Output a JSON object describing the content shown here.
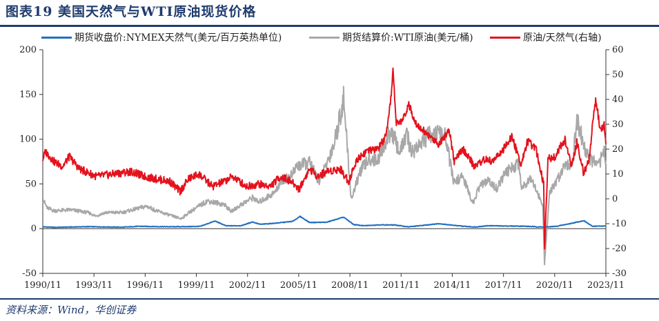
{
  "header": {
    "title": "图表19 美国天然气与WTI原油现货价格"
  },
  "footer": {
    "source": "资料来源：Wind，华创证券"
  },
  "colors": {
    "gas": "#1f6fc0",
    "wti": "#a8a8a8",
    "ratio": "#e3121d",
    "accent": "#1f3b6e"
  },
  "chart_data": {
    "type": "line",
    "title": "图表19 美国天然气与WTI原油现货价格",
    "legend_position": "top",
    "grid": false,
    "x_ticks": [
      "1990/11",
      "1993/11",
      "1996/11",
      "1999/11",
      "2002/11",
      "2005/11",
      "2008/11",
      "2011/11",
      "2014/11",
      "2017/11",
      "2020/11",
      "2023/11"
    ],
    "y_left": {
      "range": [
        -50,
        200
      ],
      "ticks": [
        -50,
        0,
        50,
        100,
        150,
        200
      ]
    },
    "y_right": {
      "range": [
        -30,
        60
      ],
      "ticks": [
        -30,
        -20,
        -10,
        0,
        10,
        20,
        30,
        40,
        50,
        60
      ]
    },
    "series": [
      {
        "name": "期货收盘价:NYMEX天然气(美元/百万英热单位)",
        "axis": "left",
        "points": [
          [
            1990.84,
            2.1
          ],
          [
            1991.5,
            1.4
          ],
          [
            1992.5,
            1.8
          ],
          [
            1993.5,
            2.2
          ],
          [
            1994.5,
            1.9
          ],
          [
            1995.5,
            1.6
          ],
          [
            1996.5,
            2.6
          ],
          [
            1997.5,
            2.3
          ],
          [
            1998.5,
            2.1
          ],
          [
            1999.5,
            2.3
          ],
          [
            2000.1,
            2.6
          ],
          [
            2000.95,
            8.5
          ],
          [
            2001.6,
            3.1
          ],
          [
            2002.5,
            3.3
          ],
          [
            2003.15,
            7.5
          ],
          [
            2003.6,
            4.8
          ],
          [
            2004.5,
            6.1
          ],
          [
            2005.5,
            8.1
          ],
          [
            2005.95,
            13.6
          ],
          [
            2006.5,
            6.9
          ],
          [
            2007.5,
            7.1
          ],
          [
            2008.5,
            12.8
          ],
          [
            2009.1,
            4.5
          ],
          [
            2009.7,
            3.2
          ],
          [
            2010.5,
            4.2
          ],
          [
            2011.5,
            4.1
          ],
          [
            2012.3,
            2.0
          ],
          [
            2013.0,
            3.3
          ],
          [
            2014.1,
            5.6
          ],
          [
            2014.9,
            3.8
          ],
          [
            2015.5,
            2.7
          ],
          [
            2016.2,
            1.8
          ],
          [
            2017.0,
            3.3
          ],
          [
            2018.0,
            2.9
          ],
          [
            2019.0,
            2.8
          ],
          [
            2020.3,
            1.7
          ],
          [
            2021.0,
            2.6
          ],
          [
            2021.8,
            5.6
          ],
          [
            2022.6,
            8.9
          ],
          [
            2023.1,
            2.7
          ],
          [
            2023.9,
            2.9
          ]
        ]
      },
      {
        "name": "期货结算价:WTI原油(美元/桶)",
        "axis": "left",
        "points": [
          [
            1990.84,
            33
          ],
          [
            1991.1,
            23
          ],
          [
            1991.5,
            20
          ],
          [
            1992.5,
            21
          ],
          [
            1993.5,
            18
          ],
          [
            1993.95,
            14
          ],
          [
            1994.5,
            18
          ],
          [
            1995.5,
            18
          ],
          [
            1996.5,
            23
          ],
          [
            1996.95,
            25
          ],
          [
            1997.5,
            20
          ],
          [
            1998.3,
            15
          ],
          [
            1998.95,
            11
          ],
          [
            1999.5,
            19
          ],
          [
            2000.5,
            31
          ],
          [
            2001.5,
            27
          ],
          [
            2001.9,
            19
          ],
          [
            2002.5,
            27
          ],
          [
            2003.2,
            35
          ],
          [
            2003.5,
            29
          ],
          [
            2004.5,
            41
          ],
          [
            2004.8,
            53
          ],
          [
            2005.5,
            60
          ],
          [
            2005.7,
            69
          ],
          [
            2006.5,
            74
          ],
          [
            2007.1,
            52
          ],
          [
            2007.5,
            72
          ],
          [
            2007.95,
            95
          ],
          [
            2008.5,
            145
          ],
          [
            2008.95,
            33
          ],
          [
            2009.5,
            65
          ],
          [
            2010.0,
            78
          ],
          [
            2010.5,
            77
          ],
          [
            2011.3,
            110
          ],
          [
            2011.8,
            85
          ],
          [
            2012.2,
            105
          ],
          [
            2012.5,
            85
          ],
          [
            2013.0,
            95
          ],
          [
            2013.7,
            108
          ],
          [
            2014.5,
            102
          ],
          [
            2014.95,
            52
          ],
          [
            2015.5,
            58
          ],
          [
            2016.1,
            28
          ],
          [
            2016.5,
            48
          ],
          [
            2017.0,
            53
          ],
          [
            2017.5,
            45
          ],
          [
            2018.0,
            62
          ],
          [
            2018.8,
            74
          ],
          [
            2018.95,
            45
          ],
          [
            2019.5,
            58
          ],
          [
            2020.2,
            25
          ],
          [
            2020.3,
            -37
          ],
          [
            2020.6,
            40
          ],
          [
            2021.0,
            52
          ],
          [
            2021.5,
            73
          ],
          [
            2021.95,
            72
          ],
          [
            2022.2,
            123
          ],
          [
            2022.7,
            86
          ],
          [
            2023.0,
            77
          ],
          [
            2023.5,
            70
          ],
          [
            2023.75,
            91
          ],
          [
            2023.9,
            76
          ]
        ]
      },
      {
        "name": "原油/天然气(右轴)",
        "axis": "right",
        "points": [
          [
            1990.84,
            16
          ],
          [
            1991.0,
            19
          ],
          [
            1991.5,
            15
          ],
          [
            1992.0,
            13
          ],
          [
            1992.4,
            17
          ],
          [
            1993.0,
            12
          ],
          [
            1994.0,
            9
          ],
          [
            1995.0,
            10
          ],
          [
            1996.0,
            11
          ],
          [
            1996.8,
            9
          ],
          [
            1997.5,
            8
          ],
          [
            1998.3,
            7
          ],
          [
            1998.9,
            3
          ],
          [
            1999.4,
            8
          ],
          [
            2000.0,
            10
          ],
          [
            2000.8,
            5
          ],
          [
            2001.5,
            7
          ],
          [
            2002.0,
            9
          ],
          [
            2002.8,
            5
          ],
          [
            2003.5,
            6
          ],
          [
            2004.2,
            5
          ],
          [
            2004.8,
            9
          ],
          [
            2005.4,
            7
          ],
          [
            2005.9,
            4
          ],
          [
            2006.5,
            12
          ],
          [
            2007.0,
            9
          ],
          [
            2007.5,
            11
          ],
          [
            2008.3,
            12
          ],
          [
            2008.8,
            7
          ],
          [
            2009.3,
            16
          ],
          [
            2009.8,
            19
          ],
          [
            2010.5,
            20
          ],
          [
            2011.0,
            25
          ],
          [
            2011.25,
            38
          ],
          [
            2011.4,
            52
          ],
          [
            2011.6,
            30
          ],
          [
            2012.0,
            32
          ],
          [
            2012.3,
            38
          ],
          [
            2012.8,
            30
          ],
          [
            2013.4,
            26
          ],
          [
            2014.1,
            22
          ],
          [
            2014.7,
            28
          ],
          [
            2015.0,
            15
          ],
          [
            2015.5,
            20
          ],
          [
            2016.2,
            13
          ],
          [
            2016.8,
            16
          ],
          [
            2017.2,
            15
          ],
          [
            2017.8,
            19
          ],
          [
            2018.4,
            25
          ],
          [
            2018.9,
            14
          ],
          [
            2019.3,
            23
          ],
          [
            2019.8,
            20
          ],
          [
            2020.25,
            6
          ],
          [
            2020.3,
            -20
          ],
          [
            2020.5,
            16
          ],
          [
            2020.9,
            17
          ],
          [
            2021.5,
            24
          ],
          [
            2021.9,
            13
          ],
          [
            2022.2,
            23
          ],
          [
            2022.6,
            10
          ],
          [
            2022.95,
            17
          ],
          [
            2023.15,
            32
          ],
          [
            2023.3,
            40
          ],
          [
            2023.6,
            27
          ],
          [
            2023.8,
            30
          ],
          [
            2023.9,
            22
          ]
        ]
      }
    ]
  }
}
